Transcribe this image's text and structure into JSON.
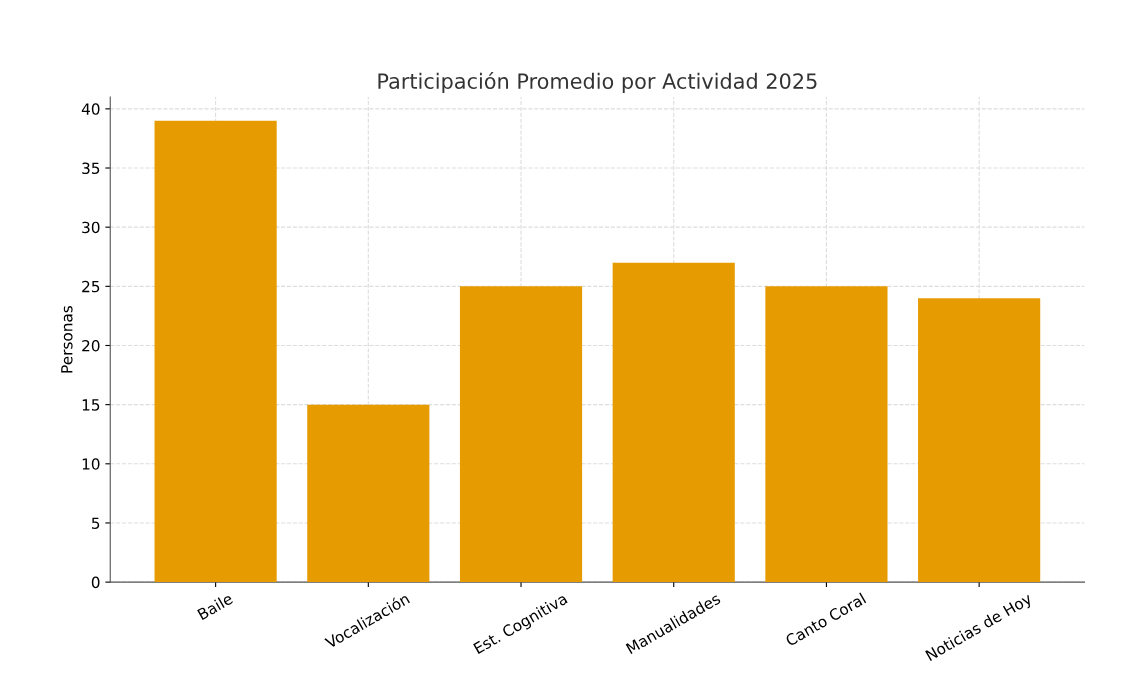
{
  "chart_data": {
    "type": "bar",
    "title": "Participación Promedio por Actividad 2025",
    "ylabel": "Personas",
    "categories": [
      "Baile",
      "Vocalización",
      "Est. Cognitiva",
      "Manualidades",
      "Canto Coral",
      "Noticias de Hoy"
    ],
    "values": [
      39,
      15,
      25,
      27,
      25,
      24
    ],
    "color": "#e69c00",
    "ylim": [
      0,
      41
    ],
    "yticks": [
      0,
      5,
      10,
      15,
      20,
      25,
      30,
      35,
      40
    ],
    "grid": true
  }
}
